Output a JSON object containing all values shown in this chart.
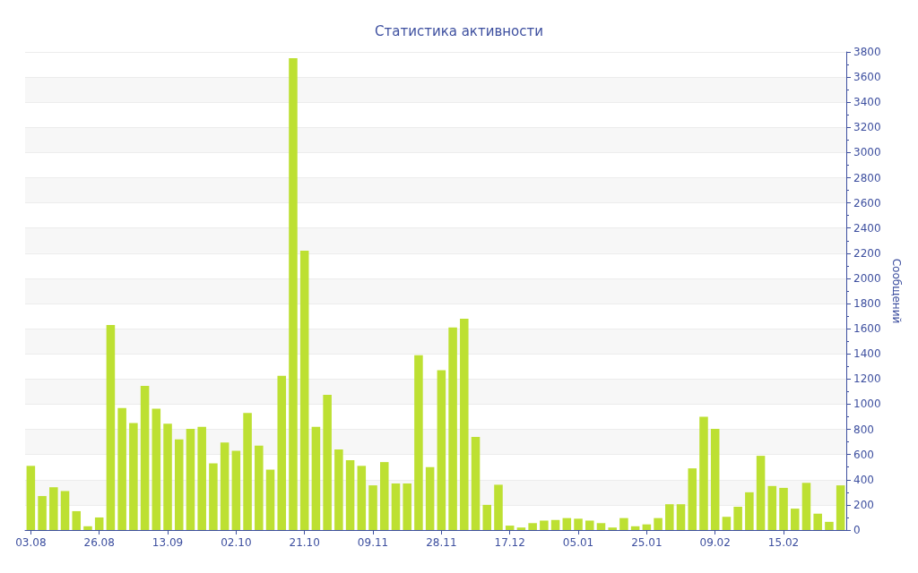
{
  "chart_data": {
    "type": "bar",
    "title": "Статистика активности",
    "ylabel": "Сообщений",
    "categories": [
      "03.08",
      null,
      null,
      null,
      null,
      null,
      "26.08",
      null,
      null,
      null,
      null,
      null,
      "13.09",
      null,
      null,
      null,
      null,
      null,
      "02.10",
      null,
      null,
      null,
      null,
      null,
      "21.10",
      null,
      null,
      null,
      null,
      null,
      "09.11",
      null,
      null,
      null,
      null,
      null,
      "28.11",
      null,
      null,
      null,
      null,
      null,
      "17.12",
      null,
      null,
      null,
      null,
      null,
      "05.01",
      null,
      null,
      null,
      null,
      null,
      "25.01",
      null,
      null,
      null,
      null,
      null,
      "09.02",
      null,
      null,
      null,
      null,
      null,
      "15.02",
      null,
      null,
      null,
      null,
      null
    ],
    "values": [
      510,
      270,
      340,
      310,
      150,
      30,
      100,
      1630,
      970,
      850,
      1145,
      965,
      845,
      720,
      805,
      820,
      530,
      695,
      630,
      930,
      670,
      480,
      1225,
      3750,
      2220,
      820,
      1075,
      640,
      555,
      510,
      355,
      540,
      370,
      370,
      1390,
      500,
      1270,
      1610,
      1680,
      740,
      200,
      360,
      35,
      20,
      55,
      75,
      80,
      95,
      90,
      75,
      55,
      20,
      95,
      30,
      45,
      95,
      205,
      205,
      490,
      900,
      805,
      105,
      185,
      300,
      590,
      350,
      335,
      170,
      375,
      130,
      65,
      355
    ],
    "color": "#bde032",
    "ylim": [
      0,
      3800
    ],
    "yticks": [
      0,
      200,
      400,
      600,
      800,
      1000,
      1200,
      1400,
      1600,
      1800,
      2000,
      2200,
      2400,
      2600,
      2800,
      3000,
      3200,
      3400,
      3600,
      3800
    ],
    "grid": "y"
  }
}
